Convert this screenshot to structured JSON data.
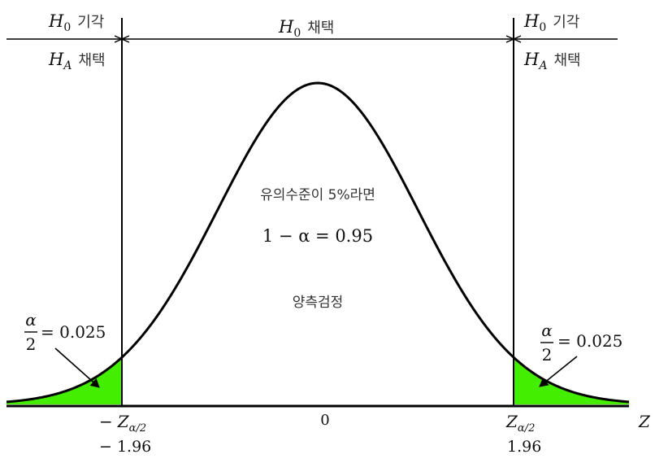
{
  "colors": {
    "tail_fill": "#44ee00",
    "stroke": "#000000",
    "text": "#111111"
  },
  "regions": {
    "left_reject_symbol": "H",
    "left_reject_sub": "0",
    "left_reject_word": "기각",
    "left_accept_symbol": "H",
    "left_accept_sub": "A",
    "left_accept_word": "채택",
    "center_symbol": "H",
    "center_sub": "0",
    "center_word": "채택",
    "right_reject_symbol": "H",
    "right_reject_sub": "0",
    "right_reject_word": "기각",
    "right_accept_symbol": "H",
    "right_accept_sub": "A",
    "right_accept_word": "채택"
  },
  "center_text": {
    "line1": "유의수준이 5%라면",
    "line2": "1 − α = 0.95",
    "line3": "양측검정"
  },
  "tail": {
    "numerator": "α",
    "denominator": "2",
    "value": "= 0.025",
    "alpha_each": 0.025
  },
  "axis": {
    "label": "Z",
    "left_crit_sign": "−",
    "left_crit_symbol": "Z",
    "left_crit_sub": "α/2",
    "left_crit_value": "− 1.96",
    "center_tick": "0",
    "right_crit_symbol": "Z",
    "right_crit_sub": "α/2",
    "right_crit_value": "1.96",
    "critical_z": 1.96
  }
}
